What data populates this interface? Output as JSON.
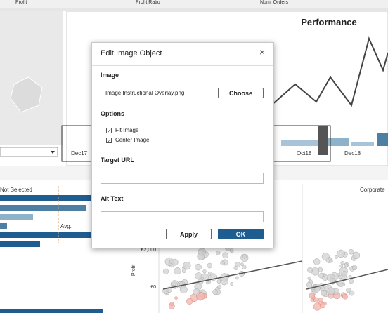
{
  "top_bar": {
    "labels": [
      "Profit",
      "Profit Ratio",
      "Num. Orders"
    ]
  },
  "dashboard": {
    "performance_title": "Performance",
    "x_labels": [
      "Dec17",
      "Oct18",
      "Dec18"
    ],
    "bar_legend": "Not Selected",
    "avg_label": "Avg.",
    "scatter_title": "Corporate",
    "y_ticks": [
      "€2,000",
      "€0"
    ],
    "y_axis_label": "Profit"
  },
  "dialog": {
    "title": "Edit Image Object",
    "image_heading": "Image",
    "file_name": "Image Instructional Overlay.png",
    "choose_button": "Choose",
    "options_heading": "Options",
    "options": [
      "Fit Image",
      "Center Image"
    ],
    "target_url_label": "Target URL",
    "alt_text_label": "Alt Text",
    "apply_button": "Apply",
    "ok_button": "OK"
  }
}
